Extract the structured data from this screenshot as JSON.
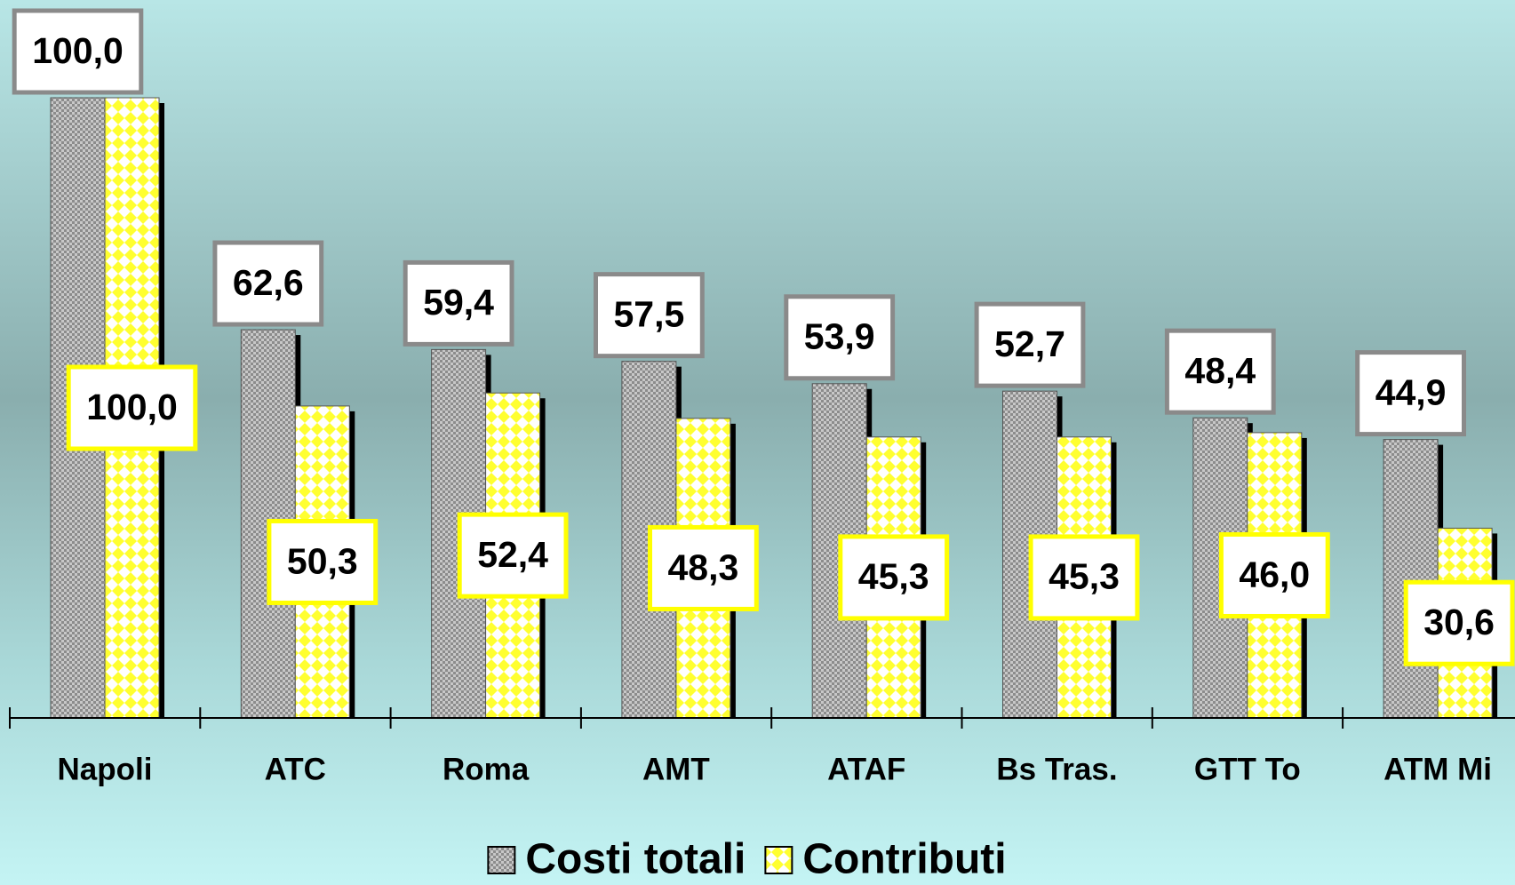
{
  "chart_data": {
    "type": "bar",
    "categories": [
      "Napoli",
      "ATC",
      "Roma",
      "AMT",
      "ATAF",
      "Bs Tras.",
      "GTT To",
      "ATM Mi"
    ],
    "series": [
      {
        "name": "Costi totali",
        "color": "#a8a8a8",
        "values": [
          100.0,
          62.6,
          59.4,
          57.5,
          53.9,
          52.7,
          48.4,
          44.9
        ],
        "value_labels": [
          "100,0",
          "62,6",
          "59,4",
          "57,5",
          "53,9",
          "52,7",
          "48,4",
          "44,9"
        ]
      },
      {
        "name": "Contributi",
        "color": "#ffff40",
        "values": [
          100.0,
          50.3,
          52.4,
          48.3,
          45.3,
          45.3,
          46.0,
          30.6
        ],
        "value_labels": [
          "100,0",
          "50,3",
          "52,4",
          "48,3",
          "45,3",
          "45,3",
          "46,0",
          "30,6"
        ]
      }
    ],
    "ylim": [
      0,
      100
    ],
    "legend": "bottom"
  }
}
